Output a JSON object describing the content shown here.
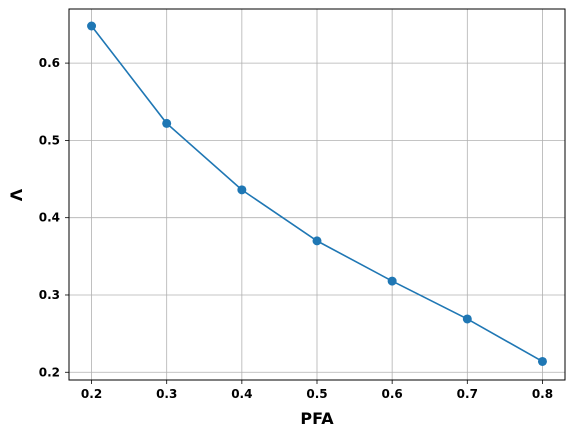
{
  "chart_data": {
    "type": "line",
    "title": "",
    "xlabel": "PFA",
    "ylabel": "Λ",
    "xlim": [
      0.17,
      0.83
    ],
    "ylim": [
      0.19,
      0.67
    ],
    "x_ticks": [
      0.2,
      0.3,
      0.4,
      0.5,
      0.6,
      0.7,
      0.8
    ],
    "x_tick_labels": [
      "0.2",
      "0.3",
      "0.4",
      "0.5",
      "0.6",
      "0.7",
      "0.8"
    ],
    "y_ticks": [
      0.2,
      0.3,
      0.4,
      0.5,
      0.6
    ],
    "y_tick_labels": [
      "0.2",
      "0.3",
      "0.4",
      "0.5",
      "0.6"
    ],
    "grid": true,
    "series": [
      {
        "x": [
          0.2,
          0.3,
          0.4,
          0.5,
          0.6,
          0.7,
          0.8
        ],
        "values": [
          0.648,
          0.522,
          0.436,
          0.37,
          0.318,
          0.269,
          0.214
        ],
        "color": "#1f77b4",
        "marker": "circle"
      }
    ]
  }
}
